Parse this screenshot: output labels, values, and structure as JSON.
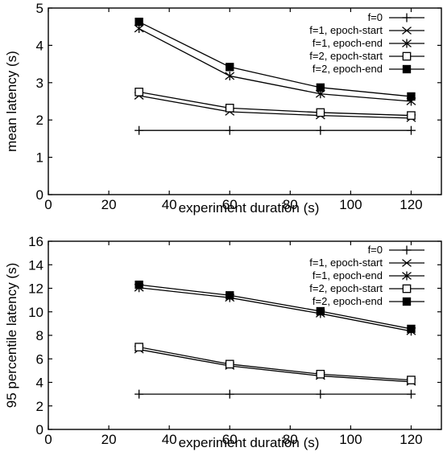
{
  "chart_data": [
    {
      "type": "line",
      "title": "",
      "xlabel": "experiment duration (s)",
      "ylabel": "mean latency (s)",
      "xlim": [
        0,
        130
      ],
      "ylim": [
        0,
        5
      ],
      "xticks": [
        0,
        20,
        40,
        60,
        80,
        100,
        120
      ],
      "yticks": [
        0,
        1,
        2,
        3,
        4,
        5
      ],
      "grid": false,
      "legend_position": "top-right",
      "x": [
        30,
        60,
        90,
        120
      ],
      "series": [
        {
          "name": "f=0",
          "marker": "plus",
          "values": [
            1.72,
            1.72,
            1.72,
            1.72
          ]
        },
        {
          "name": "f=1, epoch-start",
          "marker": "cross",
          "values": [
            2.65,
            2.22,
            2.12,
            2.05
          ]
        },
        {
          "name": "f=1, epoch-end",
          "marker": "star",
          "values": [
            4.45,
            3.18,
            2.7,
            2.5
          ]
        },
        {
          "name": "f=2, epoch-start",
          "marker": "open-square",
          "values": [
            2.75,
            2.32,
            2.2,
            2.12
          ]
        },
        {
          "name": "f=2, epoch-end",
          "marker": "filled-square",
          "values": [
            4.63,
            3.42,
            2.87,
            2.63
          ]
        }
      ]
    },
    {
      "type": "line",
      "title": "",
      "xlabel": "experiment duration (s)",
      "ylabel": "95 percentile latency (s)",
      "xlim": [
        0,
        130
      ],
      "ylim": [
        0,
        16
      ],
      "xticks": [
        0,
        20,
        40,
        60,
        80,
        100,
        120
      ],
      "yticks": [
        0,
        2,
        4,
        6,
        8,
        10,
        12,
        14,
        16
      ],
      "grid": false,
      "legend_position": "top-right",
      "x": [
        30,
        60,
        90,
        120
      ],
      "series": [
        {
          "name": "f=0",
          "marker": "plus",
          "values": [
            3.0,
            3.0,
            3.0,
            3.0
          ]
        },
        {
          "name": "f=1, epoch-start",
          "marker": "cross",
          "values": [
            6.8,
            5.4,
            4.55,
            4.05
          ]
        },
        {
          "name": "f=1, epoch-end",
          "marker": "star",
          "values": [
            12.05,
            11.2,
            9.85,
            8.35
          ]
        },
        {
          "name": "f=2, epoch-start",
          "marker": "open-square",
          "values": [
            7.0,
            5.55,
            4.7,
            4.2
          ]
        },
        {
          "name": "f=2, epoch-end",
          "marker": "filled-square",
          "values": [
            12.3,
            11.4,
            10.05,
            8.55
          ]
        }
      ]
    }
  ]
}
